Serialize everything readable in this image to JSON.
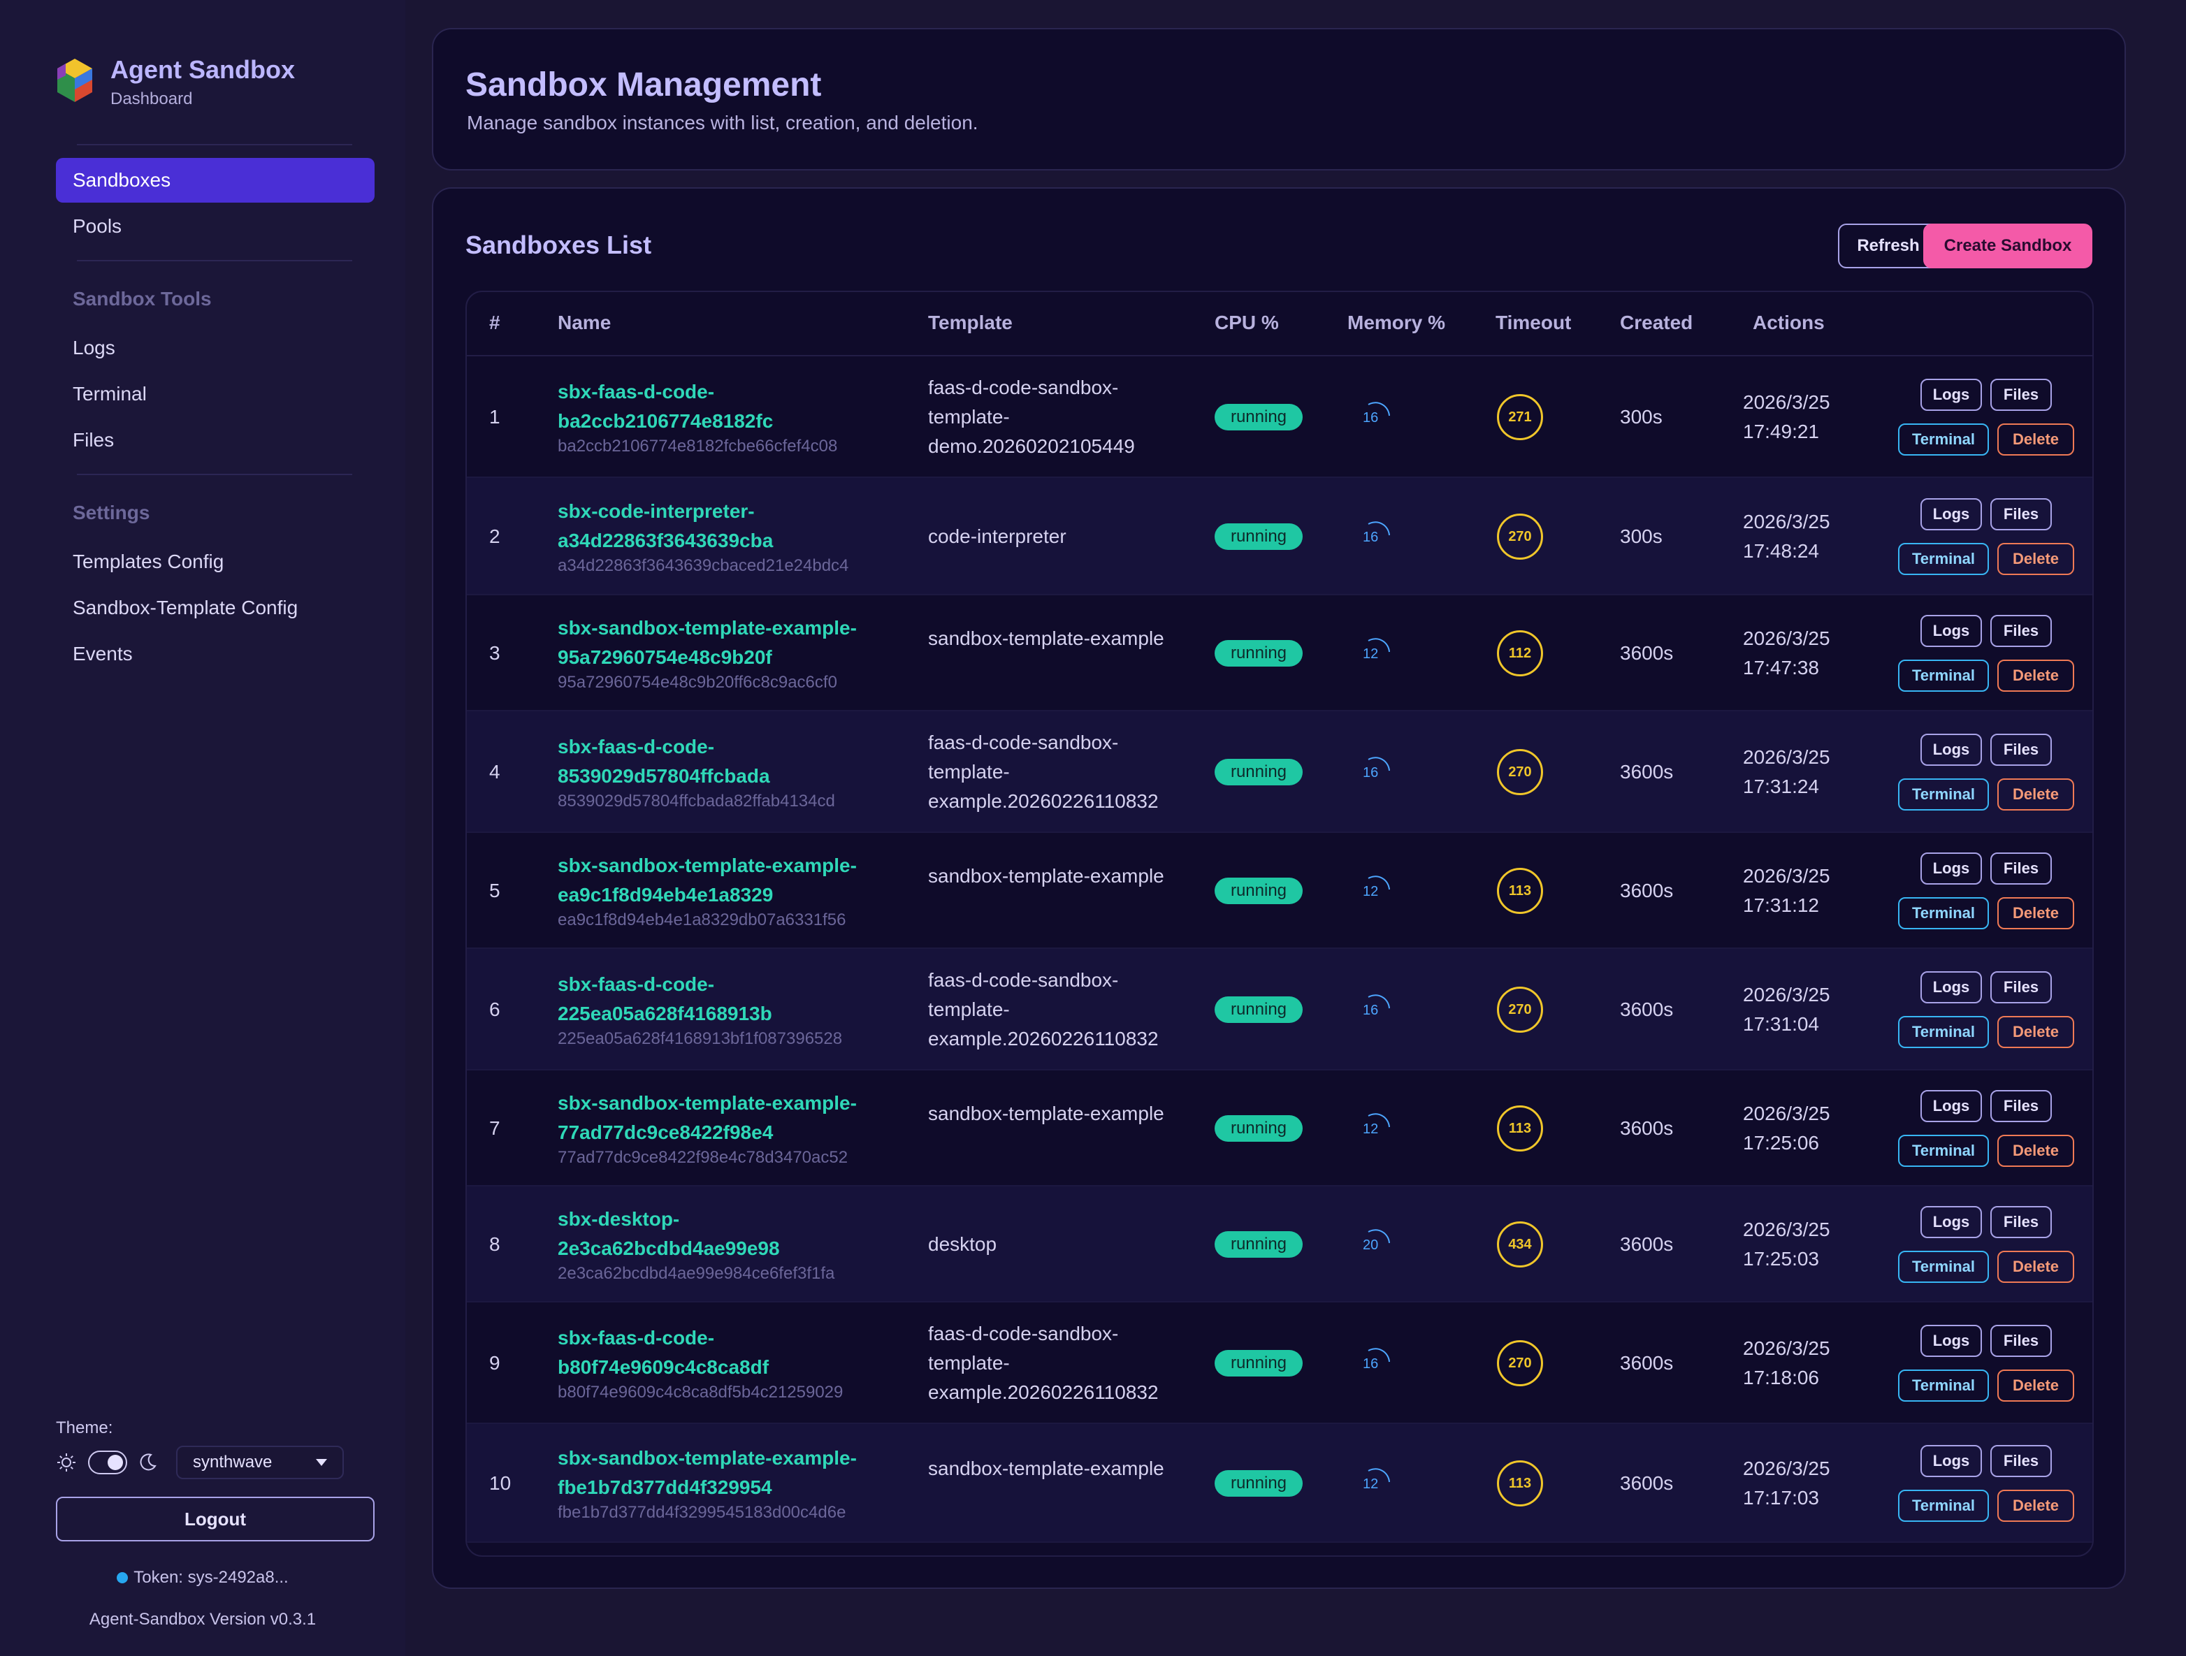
{
  "brand": {
    "title": "Agent Sandbox",
    "subtitle": "Dashboard"
  },
  "nav": {
    "primary": [
      {
        "label": "Sandboxes",
        "active": true
      },
      {
        "label": "Pools",
        "active": false
      }
    ],
    "tools_heading": "Sandbox Tools",
    "tools": [
      {
        "label": "Logs"
      },
      {
        "label": "Terminal"
      },
      {
        "label": "Files"
      }
    ],
    "settings_heading": "Settings",
    "settings": [
      {
        "label": "Templates Config"
      },
      {
        "label": "Sandbox-Template Config"
      },
      {
        "label": "Events"
      }
    ]
  },
  "theme": {
    "label": "Theme:",
    "selected": "synthwave",
    "mode": "dark"
  },
  "logout_label": "Logout",
  "token": "Token: sys-2492a8...",
  "version": "Agent-Sandbox Version v0.3.1",
  "page": {
    "title": "Sandbox Management",
    "subtitle": "Manage sandbox instances with list, creation, and deletion."
  },
  "list": {
    "title": "Sandboxes List",
    "refresh_label": "Refresh",
    "create_label": "Create Sandbox",
    "columns": [
      "#",
      "Name",
      "Template",
      "CPU %",
      "Memory %",
      "Timeout",
      "Created",
      "Actions"
    ],
    "action_labels": {
      "logs": "Logs",
      "files": "Files",
      "terminal": "Terminal",
      "delete": "Delete"
    },
    "rows": [
      {
        "num": "1",
        "name": "sbx-faas-d-code-ba2ccb2106774e8182fc",
        "id": "ba2ccb2106774e8182fcbe66cfef4c08",
        "template": "faas-d-code-sandbox-template-demo.20260202105449",
        "status": "running",
        "memory": "16",
        "timeout_ring": "271",
        "created": "300s",
        "date": "2026/3/25",
        "time": "17:49:21"
      },
      {
        "num": "2",
        "name": "sbx-code-interpreter-a34d22863f3643639cba",
        "id": "a34d22863f3643639cbaced21e24bdc4",
        "template": "code-interpreter",
        "status": "running",
        "memory": "16",
        "timeout_ring": "270",
        "created": "300s",
        "date": "2026/3/25",
        "time": "17:48:24"
      },
      {
        "num": "3",
        "name": "sbx-sandbox-template-example-95a72960754e48c9b20f",
        "id": "95a72960754e48c9b20ff6c8c9ac6cf0",
        "template": "sandbox-template-example",
        "status": "running",
        "memory": "12",
        "timeout_ring": "112",
        "created": "3600s",
        "date": "2026/3/25",
        "time": "17:47:38"
      },
      {
        "num": "4",
        "name": "sbx-faas-d-code-8539029d57804ffcbada",
        "id": "8539029d57804ffcbada82ffab4134cd",
        "template": "faas-d-code-sandbox-template-example.20260226110832",
        "status": "running",
        "memory": "16",
        "timeout_ring": "270",
        "created": "3600s",
        "date": "2026/3/25",
        "time": "17:31:24"
      },
      {
        "num": "5",
        "name": "sbx-sandbox-template-example-ea9c1f8d94eb4e1a8329",
        "id": "ea9c1f8d94eb4e1a8329db07a6331f56",
        "template": "sandbox-template-example",
        "status": "running",
        "memory": "12",
        "timeout_ring": "113",
        "created": "3600s",
        "date": "2026/3/25",
        "time": "17:31:12"
      },
      {
        "num": "6",
        "name": "sbx-faas-d-code-225ea05a628f4168913b",
        "id": "225ea05a628f4168913bf1f087396528",
        "template": "faas-d-code-sandbox-template-example.20260226110832",
        "status": "running",
        "memory": "16",
        "timeout_ring": "270",
        "created": "3600s",
        "date": "2026/3/25",
        "time": "17:31:04"
      },
      {
        "num": "7",
        "name": "sbx-sandbox-template-example-77ad77dc9ce8422f98e4",
        "id": "77ad77dc9ce8422f98e4c78d3470ac52",
        "template": "sandbox-template-example",
        "status": "running",
        "memory": "12",
        "timeout_ring": "113",
        "created": "3600s",
        "date": "2026/3/25",
        "time": "17:25:06"
      },
      {
        "num": "8",
        "name": "sbx-desktop-2e3ca62bcdbd4ae99e98",
        "id": "2e3ca62bcdbd4ae99e984ce6fef3f1fa",
        "template": "desktop",
        "status": "running",
        "memory": "20",
        "timeout_ring": "434",
        "created": "3600s",
        "date": "2026/3/25",
        "time": "17:25:03"
      },
      {
        "num": "9",
        "name": "sbx-faas-d-code-b80f74e9609c4c8ca8df",
        "id": "b80f74e9609c4c8ca8df5b4c21259029",
        "template": "faas-d-code-sandbox-template-example.20260226110832",
        "status": "running",
        "memory": "16",
        "timeout_ring": "270",
        "created": "3600s",
        "date": "2026/3/25",
        "time": "17:18:06"
      },
      {
        "num": "10",
        "name": "sbx-sandbox-template-example-fbe1b7d377dd4f329954",
        "id": "fbe1b7d377dd4f3299545183d00c4d6e",
        "template": "sandbox-template-example",
        "status": "running",
        "memory": "12",
        "timeout_ring": "113",
        "created": "3600s",
        "date": "2026/3/25",
        "time": "17:17:03"
      }
    ]
  },
  "colors": {
    "accent_active": "#4a2fd6",
    "create_button": "#f45aa8",
    "name_link": "#2fd8b8",
    "status_running": "#1fc7a3",
    "memory_arc": "#4da6ff",
    "timeout_ring": "#f0c62a",
    "terminal_border": "#38b6f4",
    "delete_border": "#f07a55"
  }
}
